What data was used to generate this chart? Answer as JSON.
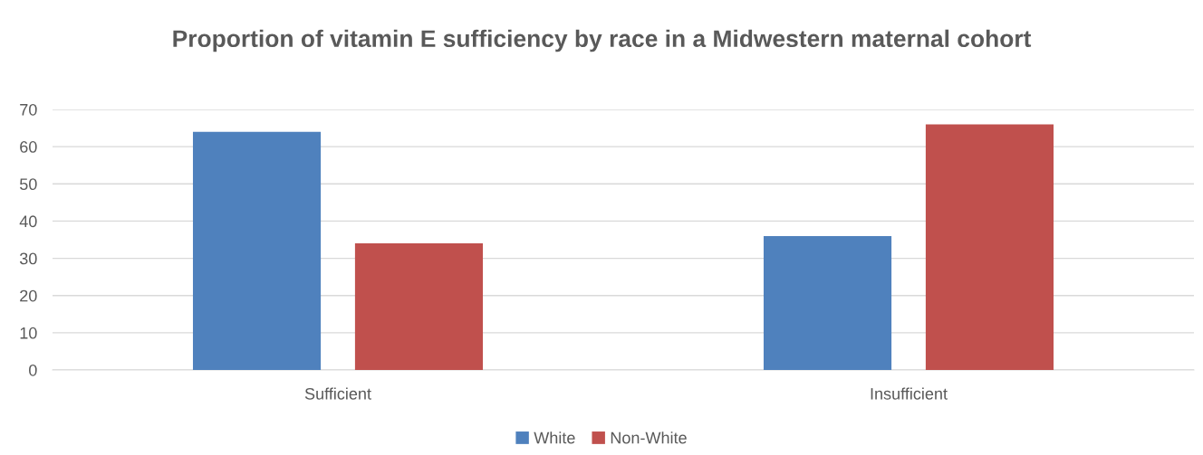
{
  "chart_data": {
    "type": "bar",
    "title": "Proportion of vitamin E sufficiency by race in a Midwestern maternal cohort",
    "categories": [
      "Sufficient",
      "Insufficient"
    ],
    "series": [
      {
        "name": "White",
        "color": "#4f81bd",
        "values": [
          64,
          36
        ]
      },
      {
        "name": "Non-White",
        "color": "#c0504d",
        "values": [
          34,
          66
        ]
      }
    ],
    "ylim": [
      0,
      70
    ],
    "yticks": [
      0,
      10,
      20,
      30,
      40,
      50,
      60,
      70
    ],
    "grid": "y",
    "legend": "bottom"
  }
}
